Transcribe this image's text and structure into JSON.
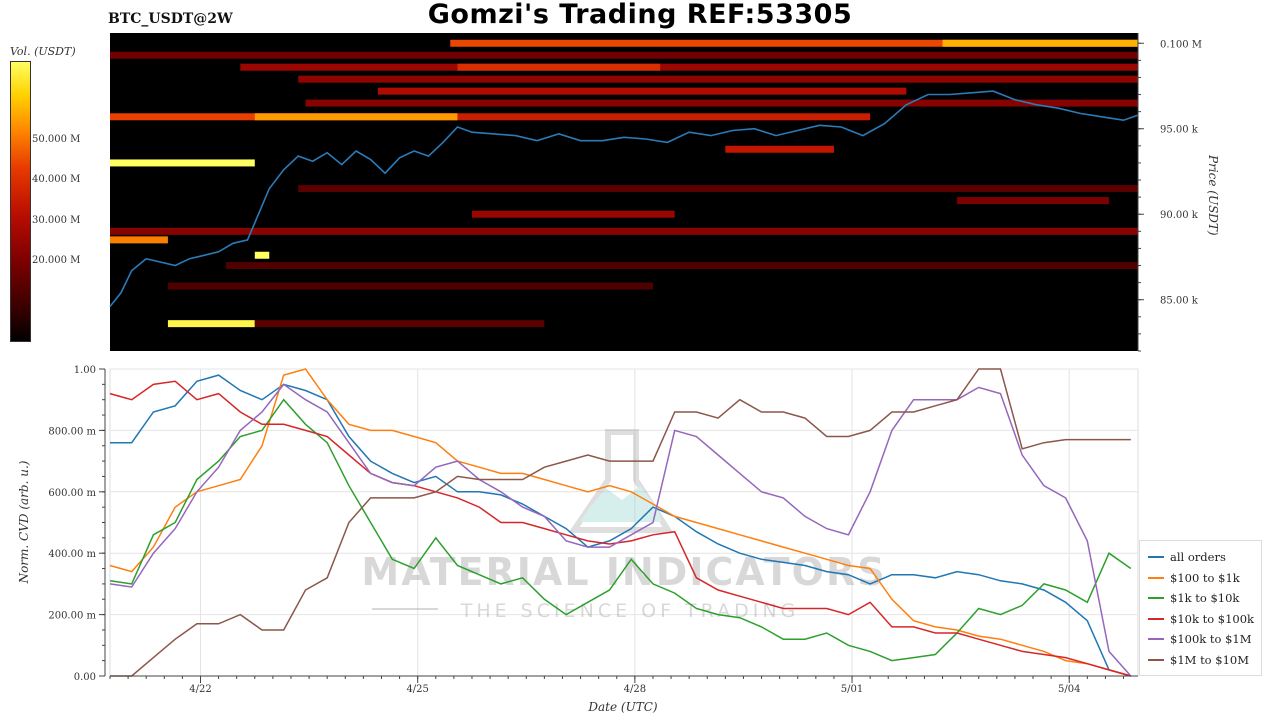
{
  "title": "Gomzi's Trading REF:53305",
  "symbol": "BTC_USDT@2W",
  "watermark": {
    "brand": "MATERIAL INDICATORS",
    "tagline": "THE SCIENCE OF TRADING"
  },
  "colors": {
    "price_line": "#2b7bb9",
    "heat_low": "#000000",
    "heat_mid": "#c81400",
    "heat_high": "#ffff60"
  },
  "chart_data": [
    {
      "type": "heatmap",
      "title": "",
      "colorbar_label": "Vol. (USDT)",
      "colorbar_ticks": [
        "20.000 M",
        "30.000 M",
        "40.000 M",
        "50.000 M"
      ],
      "colorbar_tick_values": [
        20,
        30,
        40,
        50
      ],
      "colorbar_range": [
        0,
        70
      ],
      "ylabel": "Price (USDT)",
      "y_ticks": [
        "85.00 k",
        "90.00 k",
        "95.00 k",
        "0.100 M"
      ],
      "y_tick_values": [
        85000,
        90000,
        95000,
        100000
      ],
      "ylim": [
        82000,
        100600
      ],
      "x_range_days": [
        0,
        14.2
      ],
      "price_series": {
        "name": "price",
        "x": [
          0,
          0.15,
          0.3,
          0.5,
          0.7,
          0.9,
          1.1,
          1.3,
          1.5,
          1.7,
          1.9,
          2.0,
          2.2,
          2.4,
          2.6,
          2.8,
          3.0,
          3.2,
          3.4,
          3.6,
          3.8,
          4.0,
          4.2,
          4.4,
          4.6,
          4.8,
          5.0,
          5.3,
          5.6,
          5.9,
          6.2,
          6.5,
          6.8,
          7.1,
          7.4,
          7.7,
          8.0,
          8.3,
          8.6,
          8.9,
          9.2,
          9.5,
          9.8,
          10.1,
          10.4,
          10.7,
          11.0,
          11.3,
          11.6,
          11.9,
          12.2,
          12.5,
          12.8,
          13.1,
          13.4,
          13.7,
          14.0,
          14.2
        ],
        "y": [
          84600,
          85400,
          86700,
          87400,
          87200,
          87000,
          87400,
          87600,
          87800,
          88300,
          88500,
          89500,
          91500,
          92600,
          93400,
          93100,
          93600,
          92900,
          93700,
          93200,
          92400,
          93300,
          93700,
          93400,
          94200,
          95100,
          94800,
          94700,
          94600,
          94300,
          94700,
          94300,
          94300,
          94500,
          94400,
          94200,
          94800,
          94600,
          94900,
          95000,
          94600,
          94900,
          95200,
          95100,
          94600,
          95300,
          96400,
          97000,
          97000,
          97100,
          97200,
          96700,
          96400,
          96200,
          95900,
          95700,
          95500,
          95800
        ]
      },
      "bands": [
        {
          "price": 100000,
          "x0": 4.7,
          "x1": 14.2,
          "level": 45
        },
        {
          "price": 100000,
          "x0": 11.5,
          "x1": 14.2,
          "level": 58
        },
        {
          "price": 99300,
          "x0": 0,
          "x1": 14.2,
          "level": 18
        },
        {
          "price": 98600,
          "x0": 1.8,
          "x1": 14.2,
          "level": 26
        },
        {
          "price": 98600,
          "x0": 4.8,
          "x1": 7.6,
          "level": 40
        },
        {
          "price": 97900,
          "x0": 2.6,
          "x1": 14.2,
          "level": 24
        },
        {
          "price": 97200,
          "x0": 3.7,
          "x1": 11.0,
          "level": 30
        },
        {
          "price": 96500,
          "x0": 2.7,
          "x1": 14.2,
          "level": 22
        },
        {
          "price": 95700,
          "x0": 0,
          "x1": 4.8,
          "level": 44
        },
        {
          "price": 95700,
          "x0": 2.0,
          "x1": 4.8,
          "level": 55
        },
        {
          "price": 95700,
          "x0": 4.8,
          "x1": 10.5,
          "level": 36
        },
        {
          "price": 93800,
          "x0": 8.5,
          "x1": 10.0,
          "level": 34
        },
        {
          "price": 93000,
          "x0": 0,
          "x1": 2.0,
          "level": 70
        },
        {
          "price": 91500,
          "x0": 2.6,
          "x1": 14.2,
          "level": 14
        },
        {
          "price": 90800,
          "x0": 11.7,
          "x1": 13.8,
          "level": 20
        },
        {
          "price": 90000,
          "x0": 5.0,
          "x1": 7.8,
          "level": 26
        },
        {
          "price": 89000,
          "x0": 0,
          "x1": 14.2,
          "level": 22
        },
        {
          "price": 88500,
          "x0": 0,
          "x1": 0.8,
          "level": 52
        },
        {
          "price": 87600,
          "x0": 2.0,
          "x1": 2.2,
          "level": 70
        },
        {
          "price": 87000,
          "x0": 1.6,
          "x1": 14.2,
          "level": 12
        },
        {
          "price": 85800,
          "x0": 0.8,
          "x1": 7.5,
          "level": 12
        },
        {
          "price": 83600,
          "x0": 0.8,
          "x1": 2.0,
          "level": 68
        },
        {
          "price": 83600,
          "x0": 2.0,
          "x1": 6.0,
          "level": 14
        }
      ]
    },
    {
      "type": "line",
      "title": "",
      "xlabel": "Date (UTC)",
      "ylabel": "Norm. CVD (arb. u.)",
      "ylim": [
        0,
        1
      ],
      "y_ticks": [
        "0.00",
        "200.00 m",
        "400.00 m",
        "600.00 m",
        "800.00 m",
        "1.00"
      ],
      "y_tick_values": [
        0,
        0.2,
        0.4,
        0.6,
        0.8,
        1.0
      ],
      "x_ticks": [
        "4/22",
        "4/25",
        "4/28",
        "5/01",
        "5/04"
      ],
      "x_tick_values": [
        1.25,
        4.25,
        7.25,
        10.25,
        13.25
      ],
      "xlim": [
        0,
        14.2
      ],
      "x": [
        0,
        0.3,
        0.6,
        0.9,
        1.2,
        1.5,
        1.8,
        2.1,
        2.4,
        2.7,
        3.0,
        3.3,
        3.6,
        3.9,
        4.2,
        4.5,
        4.8,
        5.1,
        5.4,
        5.7,
        6.0,
        6.3,
        6.6,
        6.9,
        7.2,
        7.5,
        7.8,
        8.1,
        8.4,
        8.7,
        9.0,
        9.3,
        9.6,
        9.9,
        10.2,
        10.5,
        10.8,
        11.1,
        11.4,
        11.7,
        12.0,
        12.3,
        12.6,
        12.9,
        13.2,
        13.5,
        13.8,
        14.1
      ],
      "series": [
        {
          "name": "all orders",
          "color": "#1f77b4",
          "values": [
            0.76,
            0.76,
            0.86,
            0.88,
            0.96,
            0.98,
            0.93,
            0.9,
            0.95,
            0.93,
            0.9,
            0.78,
            0.7,
            0.66,
            0.63,
            0.65,
            0.6,
            0.6,
            0.59,
            0.56,
            0.52,
            0.48,
            0.42,
            0.44,
            0.48,
            0.55,
            0.52,
            0.47,
            0.43,
            0.4,
            0.38,
            0.37,
            0.36,
            0.34,
            0.33,
            0.3,
            0.33,
            0.33,
            0.32,
            0.34,
            0.33,
            0.31,
            0.3,
            0.28,
            0.24,
            0.18,
            0.02,
            0.0
          ]
        },
        {
          "name": "$100 to $1k",
          "color": "#ff7f0e",
          "values": [
            0.36,
            0.34,
            0.42,
            0.55,
            0.6,
            0.62,
            0.64,
            0.75,
            0.98,
            1.0,
            0.9,
            0.82,
            0.8,
            0.8,
            0.78,
            0.76,
            0.7,
            0.68,
            0.66,
            0.66,
            0.64,
            0.62,
            0.6,
            0.62,
            0.6,
            0.56,
            0.52,
            0.5,
            0.48,
            0.46,
            0.44,
            0.42,
            0.4,
            0.38,
            0.36,
            0.35,
            0.25,
            0.18,
            0.16,
            0.15,
            0.13,
            0.12,
            0.1,
            0.08,
            0.05,
            0.04,
            0.02,
            0.0
          ]
        },
        {
          "name": "$1k to $10k",
          "color": "#2ca02c",
          "values": [
            0.31,
            0.3,
            0.46,
            0.5,
            0.64,
            0.7,
            0.78,
            0.8,
            0.9,
            0.82,
            0.76,
            0.62,
            0.5,
            0.38,
            0.35,
            0.45,
            0.36,
            0.33,
            0.3,
            0.32,
            0.25,
            0.2,
            0.24,
            0.28,
            0.38,
            0.3,
            0.27,
            0.22,
            0.2,
            0.19,
            0.16,
            0.12,
            0.12,
            0.14,
            0.1,
            0.08,
            0.05,
            0.06,
            0.07,
            0.14,
            0.22,
            0.2,
            0.23,
            0.3,
            0.28,
            0.24,
            0.4,
            0.35
          ]
        },
        {
          "name": "$10k to $100k",
          "color": "#d62728",
          "values": [
            0.92,
            0.9,
            0.95,
            0.96,
            0.9,
            0.92,
            0.86,
            0.82,
            0.82,
            0.8,
            0.78,
            0.72,
            0.66,
            0.63,
            0.62,
            0.6,
            0.58,
            0.55,
            0.5,
            0.5,
            0.48,
            0.46,
            0.44,
            0.43,
            0.44,
            0.46,
            0.47,
            0.32,
            0.28,
            0.26,
            0.24,
            0.22,
            0.22,
            0.22,
            0.2,
            0.24,
            0.16,
            0.16,
            0.14,
            0.14,
            0.12,
            0.1,
            0.08,
            0.07,
            0.06,
            0.04,
            0.02,
            0.0
          ]
        },
        {
          "name": "$100k to $1M",
          "color": "#9467bd",
          "values": [
            0.3,
            0.29,
            0.4,
            0.48,
            0.6,
            0.68,
            0.8,
            0.86,
            0.95,
            0.9,
            0.86,
            0.76,
            0.66,
            0.63,
            0.62,
            0.68,
            0.7,
            0.64,
            0.6,
            0.55,
            0.52,
            0.44,
            0.42,
            0.42,
            0.46,
            0.5,
            0.8,
            0.78,
            0.72,
            0.66,
            0.6,
            0.58,
            0.52,
            0.48,
            0.46,
            0.6,
            0.8,
            0.9,
            0.9,
            0.9,
            0.94,
            0.92,
            0.72,
            0.62,
            0.58,
            0.44,
            0.08,
            0.0
          ]
        },
        {
          "name": "$1M to $10M",
          "color": "#8c564b",
          "values": [
            0.0,
            0.0,
            0.06,
            0.12,
            0.17,
            0.17,
            0.2,
            0.15,
            0.15,
            0.28,
            0.32,
            0.5,
            0.58,
            0.58,
            0.58,
            0.6,
            0.65,
            0.64,
            0.64,
            0.64,
            0.68,
            0.7,
            0.72,
            0.7,
            0.7,
            0.7,
            0.86,
            0.86,
            0.84,
            0.9,
            0.86,
            0.86,
            0.84,
            0.78,
            0.78,
            0.8,
            0.86,
            0.86,
            0.88,
            0.9,
            1.0,
            1.0,
            0.74,
            0.76,
            0.77,
            0.77,
            0.77,
            0.77
          ]
        }
      ],
      "legend_position": "lower-right"
    }
  ]
}
